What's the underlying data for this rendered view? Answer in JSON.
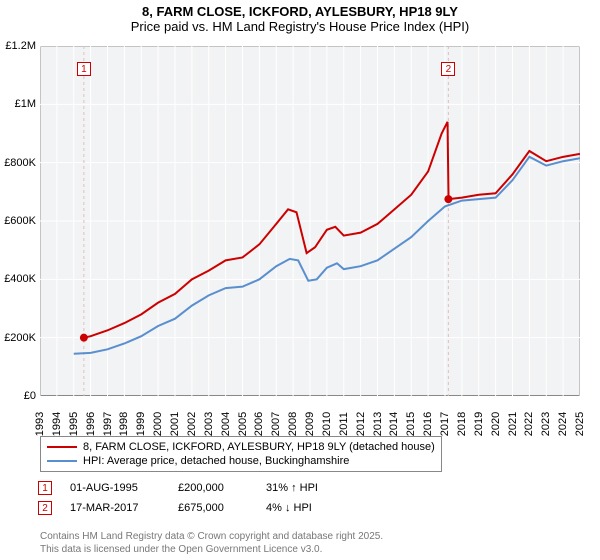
{
  "title": "8, FARM CLOSE, ICKFORD, AYLESBURY, HP18 9LY",
  "subtitle": "Price paid vs. HM Land Registry's House Price Index (HPI)",
  "chart": {
    "type": "line",
    "background_color": "#f2f3f4",
    "grid_color": "#ffffff",
    "border_color": "#888888",
    "ylim": [
      0,
      1200000
    ],
    "ytick_step": 200000,
    "yticks": [
      "£0",
      "£200K",
      "£400K",
      "£600K",
      "£800K",
      "£1M",
      "£1.2M"
    ],
    "xlim": [
      1993,
      2025
    ],
    "xticks": [
      1993,
      1994,
      1995,
      1996,
      1997,
      1998,
      1999,
      2000,
      2001,
      2002,
      2003,
      2004,
      2005,
      2006,
      2007,
      2008,
      2009,
      2010,
      2011,
      2012,
      2013,
      2014,
      2015,
      2016,
      2017,
      2018,
      2019,
      2020,
      2021,
      2022,
      2023,
      2024,
      2025
    ],
    "title_fontsize": 13,
    "label_fontsize": 11,
    "series": [
      {
        "name": "property",
        "label": "8, FARM CLOSE, ICKFORD, AYLESBURY, HP18 9LY (detached house)",
        "color": "#cc0000",
        "line_width": 2,
        "data": [
          [
            1995.6,
            200000
          ],
          [
            1996,
            205000
          ],
          [
            1997,
            225000
          ],
          [
            1998,
            250000
          ],
          [
            1999,
            280000
          ],
          [
            2000,
            320000
          ],
          [
            2001,
            350000
          ],
          [
            2002,
            400000
          ],
          [
            2003,
            430000
          ],
          [
            2004,
            465000
          ],
          [
            2005,
            475000
          ],
          [
            2006,
            520000
          ],
          [
            2007,
            590000
          ],
          [
            2007.7,
            640000
          ],
          [
            2008.2,
            630000
          ],
          [
            2008.8,
            490000
          ],
          [
            2009.3,
            510000
          ],
          [
            2010,
            570000
          ],
          [
            2010.5,
            580000
          ],
          [
            2011,
            550000
          ],
          [
            2012,
            560000
          ],
          [
            2013,
            590000
          ],
          [
            2014,
            640000
          ],
          [
            2015,
            690000
          ],
          [
            2016,
            770000
          ],
          [
            2016.8,
            900000
          ],
          [
            2017.15,
            940000
          ],
          [
            2017.21,
            675000
          ],
          [
            2018,
            680000
          ],
          [
            2019,
            690000
          ],
          [
            2020,
            695000
          ],
          [
            2021,
            760000
          ],
          [
            2022,
            840000
          ],
          [
            2023,
            805000
          ],
          [
            2024,
            820000
          ],
          [
            2025,
            830000
          ]
        ]
      },
      {
        "name": "hpi",
        "label": "HPI: Average price, detached house, Buckinghamshire",
        "color": "#5a8fcf",
        "line_width": 2,
        "data": [
          [
            1995,
            145000
          ],
          [
            1996,
            148000
          ],
          [
            1997,
            160000
          ],
          [
            1998,
            180000
          ],
          [
            1999,
            205000
          ],
          [
            2000,
            240000
          ],
          [
            2001,
            265000
          ],
          [
            2002,
            310000
          ],
          [
            2003,
            345000
          ],
          [
            2004,
            370000
          ],
          [
            2005,
            375000
          ],
          [
            2006,
            400000
          ],
          [
            2007,
            445000
          ],
          [
            2007.8,
            470000
          ],
          [
            2008.3,
            465000
          ],
          [
            2008.9,
            395000
          ],
          [
            2009.4,
            400000
          ],
          [
            2010,
            440000
          ],
          [
            2010.6,
            455000
          ],
          [
            2011,
            435000
          ],
          [
            2012,
            445000
          ],
          [
            2013,
            465000
          ],
          [
            2014,
            505000
          ],
          [
            2015,
            545000
          ],
          [
            2016,
            600000
          ],
          [
            2017,
            650000
          ],
          [
            2018,
            670000
          ],
          [
            2019,
            675000
          ],
          [
            2020,
            680000
          ],
          [
            2021,
            740000
          ],
          [
            2022,
            820000
          ],
          [
            2023,
            790000
          ],
          [
            2024,
            805000
          ],
          [
            2025,
            815000
          ]
        ]
      }
    ],
    "transaction_markers": [
      {
        "n": "1",
        "x": 1995.6,
        "color": "#cc0000",
        "vline_color": "#e5bdbd"
      },
      {
        "n": "2",
        "x": 2017.2,
        "color": "#cc0000",
        "vline_color": "#e5bdbd"
      }
    ]
  },
  "legend": {
    "items": [
      {
        "color": "#cc0000",
        "label": "8, FARM CLOSE, ICKFORD, AYLESBURY, HP18 9LY (detached house)"
      },
      {
        "color": "#5a8fcf",
        "label": "HPI: Average price, detached house, Buckinghamshire"
      }
    ]
  },
  "transactions": [
    {
      "n": "1",
      "marker_color": "#cc0000",
      "date": "01-AUG-1995",
      "price": "£200,000",
      "diff": "31% ↑ HPI"
    },
    {
      "n": "2",
      "marker_color": "#cc0000",
      "date": "17-MAR-2017",
      "price": "£675,000",
      "diff": "4% ↓ HPI"
    }
  ],
  "footer": {
    "line1": "Contains HM Land Registry data © Crown copyright and database right 2025.",
    "line2": "This data is licensed under the Open Government Licence v3.0."
  }
}
